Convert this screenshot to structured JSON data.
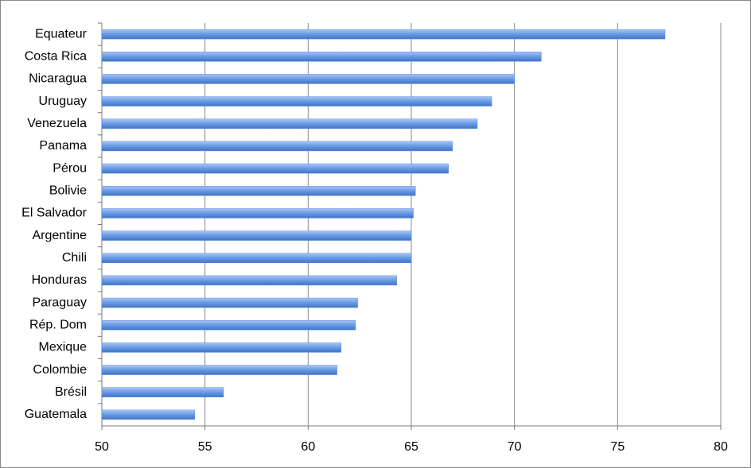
{
  "chart_data": {
    "type": "bar",
    "orientation": "horizontal",
    "categories": [
      "Equateur",
      "Costa Rica",
      "Nicaragua",
      "Uruguay",
      "Venezuela",
      "Panama",
      "Pérou",
      "Bolivie",
      "El Salvador",
      "Argentine",
      "Chili",
      "Honduras",
      "Paraguay",
      "Rép. Dom",
      "Mexique",
      "Colombie",
      "Brésil",
      "Guatemala"
    ],
    "values": [
      77.3,
      71.3,
      70.0,
      68.9,
      68.2,
      67.0,
      66.8,
      65.2,
      65.1,
      65.0,
      65.0,
      64.3,
      62.4,
      62.3,
      61.6,
      61.4,
      55.9,
      54.5
    ],
    "color": "#5b8fe0",
    "xlim": [
      50,
      80
    ],
    "xticks": [
      50,
      55,
      60,
      65,
      70,
      75,
      80
    ],
    "grid": true
  }
}
